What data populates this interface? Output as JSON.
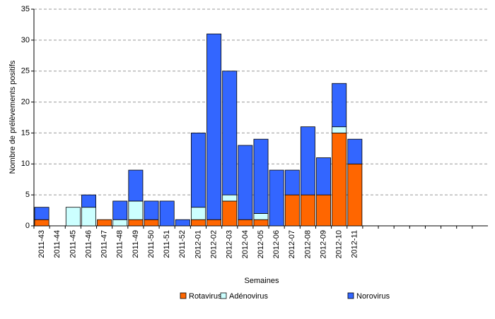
{
  "chart_data": {
    "type": "stacked-bar",
    "x_label": "Semaines",
    "y_label": "Nombre de prélèvements positifs",
    "categories": [
      "2011-43",
      "2011-44",
      "2011-45",
      "2011-46",
      "2011-47",
      "2011-48",
      "2011-49",
      "2011-50",
      "2011-51",
      "2011-52",
      "2012-01",
      "2012-02",
      "2012-03",
      "2012-04",
      "2012-05",
      "2012-06",
      "2012-07",
      "2012-08",
      "2012-09",
      "2012-10",
      "2012-11",
      null,
      null,
      null,
      null,
      null,
      null,
      null,
      null
    ],
    "series": [
      {
        "name": "Rotavirus",
        "color": "#ff6600",
        "values": [
          1,
          0,
          0,
          0,
          1,
          0,
          1,
          1,
          0,
          0,
          1,
          1,
          4,
          1,
          1,
          0,
          5,
          5,
          5,
          15,
          10,
          null,
          null,
          null,
          null,
          null,
          null,
          null,
          null
        ]
      },
      {
        "name": "Adénovirus",
        "color": "#ccffff",
        "values": [
          0,
          0,
          3,
          3,
          0,
          1,
          3,
          0,
          0,
          0,
          2,
          0,
          1,
          0,
          1,
          0,
          0,
          0,
          0,
          1,
          0,
          null,
          null,
          null,
          null,
          null,
          null,
          null,
          null
        ]
      },
      {
        "name": "Norovirus",
        "color": "#3366ff",
        "values": [
          2,
          0,
          0,
          2,
          0,
          3,
          5,
          3,
          4,
          1,
          12,
          30,
          20,
          12,
          12,
          9,
          4,
          11,
          6,
          7,
          4,
          null,
          null,
          null,
          null,
          null,
          null,
          null,
          null
        ]
      }
    ],
    "ylim": [
      0,
      35
    ],
    "yticks": [
      0,
      5,
      10,
      15,
      20,
      25,
      30,
      35
    ],
    "grid": true,
    "legend": "bottom"
  }
}
